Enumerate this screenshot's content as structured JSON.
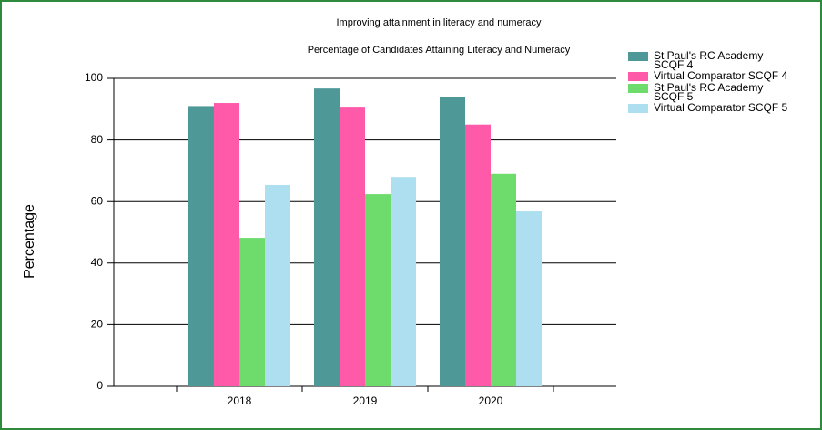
{
  "chart_data": {
    "type": "bar",
    "title": "Improving attainment in literacy and numeracy",
    "subtitle": "Percentage of Candidates Attaining Literacy and Numeracy",
    "y_label": "Percentage",
    "categories": [
      "2018",
      "2019",
      "2020"
    ],
    "series": [
      {
        "name": "St Paul's RC Academy SCQF 4",
        "color": "#4f9898",
        "values": [
          91,
          96.7,
          94
        ]
      },
      {
        "name": "Virtual Comparator SCQF 4",
        "color": "#ff5aaa",
        "values": [
          92,
          90.5,
          85
        ]
      },
      {
        "name": "St Paul's RC Academy SCQF 5",
        "color": "#6ddc6d",
        "values": [
          48.2,
          62.4,
          69
        ]
      },
      {
        "name": "Virtual Comparator SCQF 5",
        "color": "#aedff0",
        "values": [
          65.4,
          68,
          56.8
        ]
      }
    ],
    "ylim": [
      0,
      100
    ],
    "yticks": [
      0,
      20,
      40,
      60,
      80,
      100
    ],
    "grid": true,
    "legend": "right"
  }
}
